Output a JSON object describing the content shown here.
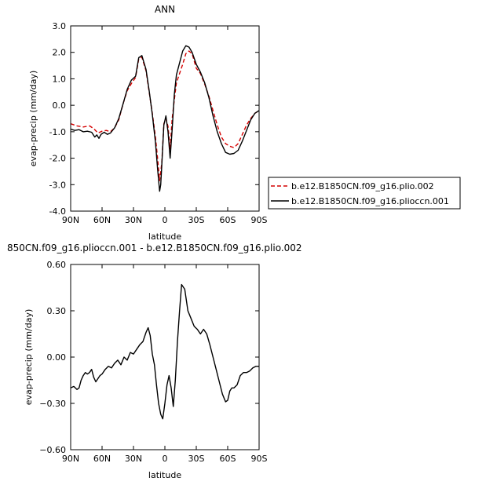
{
  "chart_data": [
    {
      "type": "line",
      "title": "ANN",
      "xlabel": "latitude",
      "ylabel": "evap-precip (mm/day)",
      "xlim": [
        90,
        -90
      ],
      "ylim": [
        -4.0,
        3.0
      ],
      "xticks": [
        90,
        60,
        30,
        0,
        -30,
        -60,
        -90
      ],
      "xtick_labels": [
        "90N",
        "60N",
        "30N",
        "0",
        "30S",
        "60S",
        "90S"
      ],
      "yticks": [
        -4,
        -3,
        -2,
        -1,
        0,
        1,
        2,
        3
      ],
      "ytick_labels": [
        "-4.0",
        "-3.0",
        "-2.0",
        "-1.0",
        "0.0",
        "1.0",
        "2.0",
        "3.0"
      ],
      "legend": "right",
      "series": [
        {
          "name": "b.e12.B1850CN.f09_g16.plio.002",
          "color": "#d40000",
          "dash": "dashed",
          "x": [
            90,
            84,
            78,
            72,
            68,
            64,
            60,
            56,
            52,
            48,
            44,
            40,
            36,
            32,
            28,
            25,
            22,
            18,
            15,
            12,
            9,
            7,
            5,
            3,
            1,
            -1,
            -3,
            -5,
            -7,
            -9,
            -11,
            -14,
            -17,
            -20,
            -23,
            -26,
            -30,
            -34,
            -38,
            -42,
            -46,
            -50,
            -54,
            -58,
            -62,
            -66,
            -70,
            -74,
            -78,
            -82,
            -86,
            -90
          ],
          "y": [
            -0.7,
            -0.78,
            -0.82,
            -0.78,
            -0.88,
            -1.05,
            -0.98,
            -0.95,
            -1.0,
            -0.85,
            -0.55,
            0.05,
            0.55,
            0.82,
            1.05,
            1.75,
            1.82,
            1.3,
            0.5,
            -0.3,
            -1.2,
            -2.0,
            -2.85,
            -2.2,
            -0.7,
            -0.5,
            -0.8,
            -1.65,
            -0.5,
            0.2,
            0.85,
            1.2,
            1.55,
            1.95,
            2.05,
            1.95,
            1.4,
            1.2,
            0.8,
            0.35,
            -0.2,
            -0.75,
            -1.2,
            -1.45,
            -1.55,
            -1.6,
            -1.45,
            -1.1,
            -0.75,
            -0.5,
            -0.3,
            -0.2
          ]
        },
        {
          "name": "b.e12.B1850CN.f09_g16.plioccn.001",
          "color": "#000000",
          "dash": "solid",
          "x": [
            90,
            86,
            82,
            78,
            74,
            70,
            67,
            65,
            63,
            61,
            58,
            55,
            52,
            48,
            44,
            40,
            36,
            32,
            28,
            25,
            22,
            18,
            15,
            12,
            9,
            7,
            5,
            4,
            3,
            1,
            -1,
            -3,
            -5,
            -7,
            -9,
            -11,
            -14,
            -17,
            -20,
            -23,
            -26,
            -30,
            -34,
            -38,
            -42,
            -46,
            -50,
            -54,
            -58,
            -62,
            -66,
            -70,
            -74,
            -78,
            -82,
            -86,
            -90
          ],
          "y": [
            -0.9,
            -0.95,
            -0.92,
            -1.0,
            -0.98,
            -1.02,
            -1.2,
            -1.12,
            -1.25,
            -1.1,
            -1.02,
            -1.1,
            -1.05,
            -0.85,
            -0.5,
            0.05,
            0.6,
            0.95,
            1.1,
            1.8,
            1.88,
            1.35,
            0.55,
            -0.35,
            -1.4,
            -2.4,
            -3.25,
            -3.0,
            -2.3,
            -0.75,
            -0.4,
            -1.0,
            -2.0,
            -0.9,
            0.4,
            1.15,
            1.6,
            2.05,
            2.25,
            2.2,
            2.0,
            1.55,
            1.25,
            0.85,
            0.3,
            -0.4,
            -1.0,
            -1.45,
            -1.78,
            -1.85,
            -1.82,
            -1.7,
            -1.35,
            -0.95,
            -0.55,
            -0.3,
            -0.2
          ]
        }
      ]
    },
    {
      "type": "line",
      "title": "850CN.f09_g16.plioccn.001 - b.e12.B1850CN.f09_g16.plio.002",
      "xlabel": "latitude",
      "ylabel": "evap-precip (mm/day)",
      "xlim": [
        90,
        -90
      ],
      "ylim": [
        -0.6,
        0.6
      ],
      "xticks": [
        90,
        60,
        30,
        0,
        -30,
        -60,
        -90
      ],
      "xtick_labels": [
        "90N",
        "60N",
        "30N",
        "0",
        "30S",
        "60S",
        "90S"
      ],
      "yticks": [
        -0.6,
        -0.3,
        0.0,
        0.3,
        0.6
      ],
      "ytick_labels": [
        "−0.60",
        "−0.30",
        "0.00",
        "0.30",
        "0.60"
      ],
      "series": [
        {
          "name": "",
          "color": "#000000",
          "dash": "solid",
          "x": [
            90,
            87,
            84,
            82,
            80,
            78,
            76,
            74,
            72,
            70,
            68,
            66,
            64,
            62,
            60,
            57,
            54,
            51,
            48,
            45,
            42,
            39,
            36,
            33,
            30,
            27,
            24,
            21,
            18,
            16,
            14,
            12,
            10,
            8,
            6,
            4,
            2,
            0,
            -2,
            -4,
            -6,
            -8,
            -10,
            -12,
            -14,
            -16,
            -19,
            -22,
            -25,
            -28,
            -31,
            -34,
            -37,
            -40,
            -43,
            -46,
            -49,
            -52,
            -55,
            -58,
            -60,
            -62,
            -64,
            -66,
            -69,
            -72,
            -75,
            -78,
            -81,
            -84,
            -87,
            -90
          ],
          "y": [
            -0.2,
            -0.19,
            -0.21,
            -0.2,
            -0.15,
            -0.12,
            -0.1,
            -0.11,
            -0.1,
            -0.08,
            -0.13,
            -0.16,
            -0.14,
            -0.12,
            -0.11,
            -0.08,
            -0.06,
            -0.07,
            -0.04,
            -0.02,
            -0.05,
            0.0,
            -0.02,
            0.03,
            0.02,
            0.05,
            0.08,
            0.1,
            0.16,
            0.19,
            0.14,
            0.02,
            -0.05,
            -0.18,
            -0.3,
            -0.37,
            -0.4,
            -0.3,
            -0.18,
            -0.12,
            -0.2,
            -0.32,
            -0.15,
            0.1,
            0.3,
            0.47,
            0.44,
            0.3,
            0.25,
            0.2,
            0.18,
            0.15,
            0.18,
            0.15,
            0.08,
            0.0,
            -0.08,
            -0.16,
            -0.24,
            -0.29,
            -0.28,
            -0.22,
            -0.2,
            -0.2,
            -0.18,
            -0.12,
            -0.1,
            -0.1,
            -0.09,
            -0.07,
            -0.06,
            -0.06
          ]
        }
      ]
    }
  ]
}
